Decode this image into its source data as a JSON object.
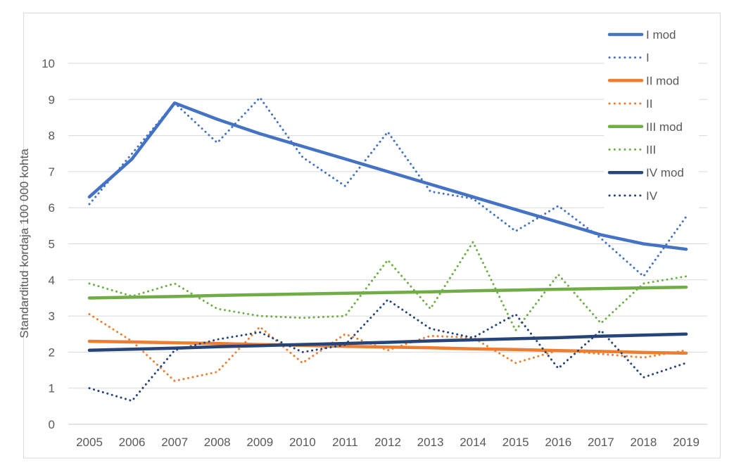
{
  "chart_data": {
    "type": "line",
    "title": "",
    "xlabel": "",
    "ylabel": "Standarditud kordaja 100 000 kohta",
    "x": [
      2005,
      2006,
      2007,
      2008,
      2009,
      2010,
      2011,
      2012,
      2013,
      2014,
      2015,
      2016,
      2017,
      2018,
      2019
    ],
    "ylim": [
      0,
      10
    ],
    "ytick_step": 1,
    "yticks": [
      0,
      1,
      2,
      3,
      4,
      5,
      6,
      7,
      8,
      9,
      10
    ],
    "grid": true,
    "legend_position": "top-right-inside",
    "series": [
      {
        "name": "I mod",
        "style": "solid",
        "color": "#4472C4",
        "values": [
          6.3,
          7.35,
          8.9,
          8.45,
          8.05,
          7.7,
          7.35,
          7.0,
          6.65,
          6.3,
          5.95,
          5.6,
          5.25,
          5.0,
          4.85
        ]
      },
      {
        "name": "I",
        "style": "dotted",
        "color": "#4472C4",
        "values": [
          6.1,
          7.5,
          8.9,
          7.8,
          9.05,
          7.4,
          6.6,
          8.1,
          6.45,
          6.25,
          5.35,
          6.05,
          5.15,
          4.1,
          5.75
        ]
      },
      {
        "name": "II mod",
        "style": "solid",
        "color": "#ED7D31",
        "values": [
          2.3,
          2.28,
          2.26,
          2.24,
          2.21,
          2.19,
          2.16,
          2.14,
          2.12,
          2.09,
          2.07,
          2.04,
          2.02,
          1.99,
          1.97
        ]
      },
      {
        "name": "II",
        "style": "dotted",
        "color": "#ED7D31",
        "values": [
          3.05,
          2.3,
          1.2,
          1.45,
          2.7,
          1.7,
          2.5,
          2.05,
          2.45,
          2.4,
          1.7,
          2.05,
          1.95,
          1.85,
          2.05
        ]
      },
      {
        "name": "III mod",
        "style": "solid",
        "color": "#70AD47",
        "values": [
          3.5,
          3.52,
          3.54,
          3.57,
          3.59,
          3.61,
          3.63,
          3.65,
          3.67,
          3.7,
          3.72,
          3.74,
          3.76,
          3.78,
          3.8
        ]
      },
      {
        "name": "III",
        "style": "dotted",
        "color": "#70AD47",
        "values": [
          3.9,
          3.55,
          3.9,
          3.2,
          3.0,
          2.95,
          3.0,
          4.55,
          3.2,
          5.05,
          2.6,
          4.15,
          2.8,
          3.9,
          4.1
        ]
      },
      {
        "name": "IV mod",
        "style": "solid",
        "color": "#264478",
        "values": [
          2.05,
          2.08,
          2.11,
          2.15,
          2.18,
          2.21,
          2.24,
          2.27,
          2.31,
          2.34,
          2.37,
          2.4,
          2.44,
          2.47,
          2.5
        ]
      },
      {
        "name": "IV",
        "style": "dotted",
        "color": "#264478",
        "values": [
          1.0,
          0.65,
          2.05,
          2.35,
          2.55,
          2.0,
          2.2,
          3.45,
          2.65,
          2.4,
          3.05,
          1.55,
          2.6,
          1.3,
          1.7
        ]
      }
    ],
    "colors": {
      "gridline": "#D9D9D9",
      "axis_line": "#C8C8C8",
      "frame_border": "#D9D9D9",
      "tick_text": "#595959",
      "legend_text": "#595959",
      "background": "#FFFFFF"
    }
  }
}
